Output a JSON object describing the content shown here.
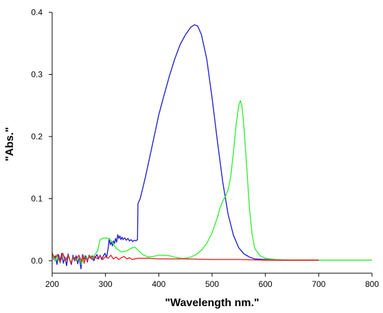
{
  "chart_data": {
    "type": "line",
    "xlabel": "\"Wavelength nm.\"",
    "ylabel": "\"Abs.\"",
    "xlim": [
      200,
      800
    ],
    "ylim": [
      -0.02,
      0.4
    ],
    "xticks": [
      "200",
      "300",
      "400",
      "500",
      "600",
      "700",
      "800"
    ],
    "yticks": [
      "0.0",
      "0.1",
      "0.2",
      "0.3",
      "0.4"
    ],
    "xtick_values": [
      200,
      300,
      400,
      500,
      600,
      700,
      800
    ],
    "ytick_values": [
      0,
      0.1,
      0.2,
      0.3,
      0.4
    ],
    "grid": false,
    "legend": "none",
    "series": [
      {
        "color": "#2020d0",
        "points": [
          [
            200,
            0.013
          ],
          [
            203,
            0.002
          ],
          [
            206,
            0.008
          ],
          [
            209,
            -0.006
          ],
          [
            212,
            0.01
          ],
          [
            215,
            0.0
          ],
          [
            218,
            0.012
          ],
          [
            221,
            -0.004
          ],
          [
            224,
            0.006
          ],
          [
            227,
            -0.008
          ],
          [
            230,
            0.011
          ],
          [
            233,
            0.002
          ],
          [
            236,
            -0.006
          ],
          [
            239,
            0.009
          ],
          [
            242,
            0.0
          ],
          [
            245,
            0.008
          ],
          [
            248,
            -0.005
          ],
          [
            251,
            0.006
          ],
          [
            254,
            -0.013
          ],
          [
            257,
            0.01
          ],
          [
            260,
            0.003
          ],
          [
            263,
            0.008
          ],
          [
            266,
            -0.002
          ],
          [
            269,
            0.009
          ],
          [
            272,
            0.004
          ],
          [
            275,
            0.008
          ],
          [
            278,
            0.0
          ],
          [
            281,
            0.006
          ],
          [
            284,
            0.01
          ],
          [
            287,
            0.003
          ],
          [
            290,
            0.009
          ],
          [
            293,
            0.002
          ],
          [
            296,
            0.008
          ],
          [
            299,
            0.012
          ],
          [
            302,
            0.005
          ],
          [
            305,
            0.02
          ],
          [
            307,
            0.036
          ],
          [
            309,
            0.026
          ],
          [
            311,
            0.03
          ],
          [
            313,
            0.024
          ],
          [
            315,
            0.032
          ],
          [
            317,
            0.028
          ],
          [
            319,
            0.036
          ],
          [
            321,
            0.03
          ],
          [
            323,
            0.042
          ],
          [
            325,
            0.036
          ],
          [
            327,
            0.04
          ],
          [
            329,
            0.034
          ],
          [
            331,
            0.038
          ],
          [
            333,
            0.034
          ],
          [
            336,
            0.037
          ],
          [
            339,
            0.033
          ],
          [
            342,
            0.036
          ],
          [
            345,
            0.032
          ],
          [
            348,
            0.034
          ],
          [
            351,
            0.031
          ],
          [
            354,
            0.033
          ],
          [
            357,
            0.032
          ],
          [
            360,
            0.034
          ],
          [
            361,
            0.092
          ],
          [
            365,
            0.1
          ],
          [
            370,
            0.117
          ],
          [
            375,
            0.135
          ],
          [
            380,
            0.155
          ],
          [
            385,
            0.175
          ],
          [
            390,
            0.195
          ],
          [
            395,
            0.215
          ],
          [
            400,
            0.235
          ],
          [
            410,
            0.267
          ],
          [
            420,
            0.298
          ],
          [
            430,
            0.325
          ],
          [
            440,
            0.348
          ],
          [
            450,
            0.364
          ],
          [
            460,
            0.376
          ],
          [
            467,
            0.38
          ],
          [
            473,
            0.378
          ],
          [
            480,
            0.364
          ],
          [
            490,
            0.325
          ],
          [
            500,
            0.262
          ],
          [
            510,
            0.192
          ],
          [
            520,
            0.127
          ],
          [
            530,
            0.075
          ],
          [
            540,
            0.041
          ],
          [
            550,
            0.021
          ],
          [
            560,
            0.011
          ],
          [
            570,
            0.006
          ],
          [
            580,
            0.003
          ],
          [
            600,
            0.002
          ],
          [
            620,
            0.001
          ],
          [
            650,
            0.001
          ],
          [
            700,
            0.001
          ]
        ]
      },
      {
        "color": "#33ee33",
        "points": [
          [
            200,
            0.01
          ],
          [
            205,
            0.0
          ],
          [
            210,
            0.008
          ],
          [
            215,
            -0.004
          ],
          [
            220,
            0.01
          ],
          [
            225,
            0.0
          ],
          [
            230,
            0.009
          ],
          [
            235,
            -0.003
          ],
          [
            240,
            0.007
          ],
          [
            245,
            0.0
          ],
          [
            250,
            0.009
          ],
          [
            255,
            -0.006
          ],
          [
            260,
            0.008
          ],
          [
            265,
            0.002
          ],
          [
            270,
            0.009
          ],
          [
            275,
            0.004
          ],
          [
            280,
            0.01
          ],
          [
            285,
            0.015
          ],
          [
            290,
            0.034
          ],
          [
            295,
            0.036
          ],
          [
            300,
            0.037
          ],
          [
            305,
            0.036
          ],
          [
            310,
            0.033
          ],
          [
            315,
            0.027
          ],
          [
            320,
            0.02
          ],
          [
            330,
            0.014
          ],
          [
            340,
            0.016
          ],
          [
            350,
            0.021
          ],
          [
            355,
            0.022
          ],
          [
            360,
            0.018
          ],
          [
            370,
            0.01
          ],
          [
            380,
            0.006
          ],
          [
            390,
            0.007
          ],
          [
            400,
            0.009
          ],
          [
            410,
            0.009
          ],
          [
            420,
            0.008
          ],
          [
            430,
            0.006
          ],
          [
            440,
            0.004
          ],
          [
            450,
            0.004
          ],
          [
            460,
            0.006
          ],
          [
            470,
            0.01
          ],
          [
            480,
            0.017
          ],
          [
            490,
            0.028
          ],
          [
            500,
            0.045
          ],
          [
            510,
            0.07
          ],
          [
            515,
            0.085
          ],
          [
            520,
            0.096
          ],
          [
            525,
            0.104
          ],
          [
            530,
            0.114
          ],
          [
            535,
            0.136
          ],
          [
            540,
            0.175
          ],
          [
            545,
            0.218
          ],
          [
            550,
            0.25
          ],
          [
            553,
            0.258
          ],
          [
            556,
            0.25
          ],
          [
            560,
            0.212
          ],
          [
            565,
            0.15
          ],
          [
            570,
            0.085
          ],
          [
            575,
            0.042
          ],
          [
            580,
            0.02
          ],
          [
            590,
            0.008
          ],
          [
            600,
            0.004
          ],
          [
            620,
            0.002
          ],
          [
            650,
            0.001
          ],
          [
            700,
            0.001
          ],
          [
            750,
            0.001
          ],
          [
            800,
            0.001
          ]
        ]
      },
      {
        "color": "#ee2020",
        "points": [
          [
            200,
            0.012
          ],
          [
            205,
            0.004
          ],
          [
            210,
            0.01
          ],
          [
            215,
            -0.002
          ],
          [
            220,
            0.012
          ],
          [
            225,
            0.0
          ],
          [
            230,
            0.009
          ],
          [
            235,
            -0.004
          ],
          [
            240,
            0.006
          ],
          [
            245,
            0.002
          ],
          [
            250,
            0.009
          ],
          [
            255,
            0.0
          ],
          [
            258,
            0.008
          ],
          [
            260,
            -0.004
          ],
          [
            263,
            0.005
          ],
          [
            266,
            0.0
          ],
          [
            270,
            0.008
          ],
          [
            275,
            0.002
          ],
          [
            280,
            0.007
          ],
          [
            285,
            0.003
          ],
          [
            290,
            0.008
          ],
          [
            295,
            0.002
          ],
          [
            300,
            0.007
          ],
          [
            305,
            0.004
          ],
          [
            310,
            0.009
          ],
          [
            315,
            0.003
          ],
          [
            320,
            0.006
          ],
          [
            325,
            0.002
          ],
          [
            330,
            0.005
          ],
          [
            335,
            0.007
          ],
          [
            340,
            0.003
          ],
          [
            345,
            0.005
          ],
          [
            350,
            0.002
          ],
          [
            360,
            0.004
          ],
          [
            380,
            0.004
          ],
          [
            400,
            0.003
          ],
          [
            450,
            0.003
          ],
          [
            500,
            0.002
          ],
          [
            550,
            0.002
          ],
          [
            600,
            0.001
          ],
          [
            650,
            0.001
          ],
          [
            700,
            0.001
          ]
        ]
      }
    ]
  }
}
